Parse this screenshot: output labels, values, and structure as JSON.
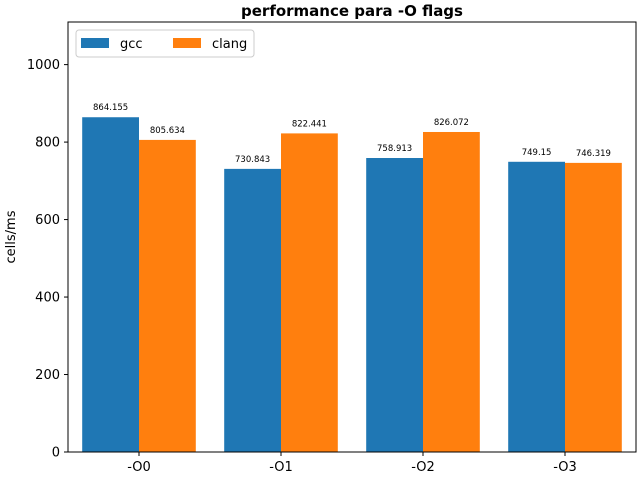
{
  "chart_data": {
    "type": "bar",
    "title": "performance para -O flags",
    "xlabel": "",
    "ylabel": "cells/ms",
    "categories": [
      "-O0",
      "-O1",
      "-O2",
      "-O3"
    ],
    "series": [
      {
        "name": "gcc",
        "color": "#1f77b4",
        "values": [
          864.155,
          730.843,
          758.913,
          749.15
        ]
      },
      {
        "name": "clang",
        "color": "#ff7f0e",
        "values": [
          805.634,
          822.441,
          826.072,
          746.319
        ]
      }
    ],
    "ylim": [
      0,
      1110
    ],
    "yticks": [
      0,
      200,
      400,
      600,
      800,
      1000
    ],
    "grid": false,
    "legend_position": "top-left"
  }
}
